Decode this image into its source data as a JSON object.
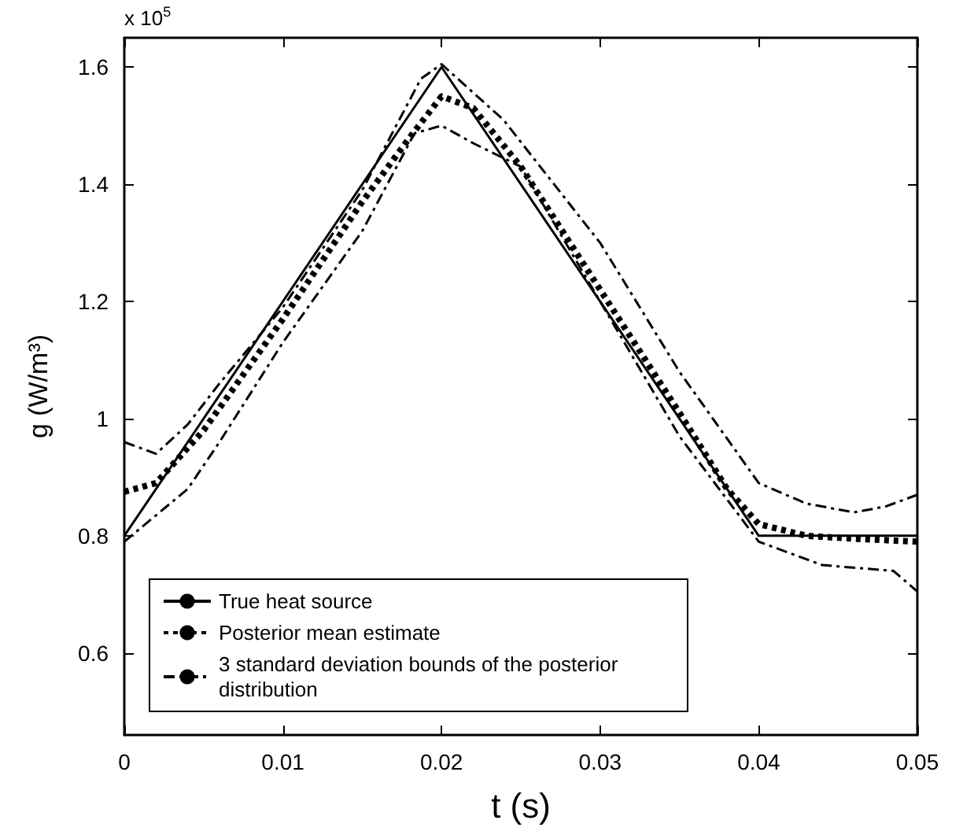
{
  "chart_data": {
    "type": "line",
    "xlabel": "t (s)",
    "ylabel": "g (W/m³)",
    "annotations": [
      "x 10$^{5}$"
    ],
    "xlim": [
      0,
      0.05
    ],
    "xticks": [
      0,
      0.01,
      0.02,
      0.03,
      0.04,
      0.05
    ],
    "ylim": [
      0.46,
      1.65
    ],
    "yticks": [
      0.6,
      0.8,
      1,
      1.2,
      1.4,
      1.6
    ],
    "grid": false,
    "legend": "bottom left",
    "marker": "none",
    "series": [
      {
        "name": "True heat source",
        "color": "#000000",
        "line_style": "solid",
        "x": [
          0,
          0.02,
          0.04,
          0.05
        ],
        "values": [
          0.8,
          1.6,
          0.8,
          0.8
        ]
      },
      {
        "name": "Posterior mean estimate",
        "color": "#000000",
        "line_style": "dotted",
        "x": [
          0,
          0.002,
          0.005,
          0.01,
          0.015,
          0.018,
          0.02,
          0.022,
          0.025,
          0.03,
          0.035,
          0.038,
          0.04,
          0.043,
          0.046,
          0.05
        ],
        "values": [
          0.875,
          0.89,
          0.98,
          1.17,
          1.37,
          1.48,
          1.55,
          1.53,
          1.43,
          1.22,
          1.01,
          0.88,
          0.82,
          0.8,
          0.795,
          0.79
        ]
      },
      {
        "name": "3 standard deviation bounds of the posterior distribution",
        "color": "#000000",
        "line_style": "dashdot",
        "x": [
          0,
          0.002,
          0.004,
          0.006,
          0.01,
          0.015,
          0.0187,
          0.02,
          0.0239,
          0.03,
          0.035,
          0.04,
          0.043,
          0.046,
          0.048,
          0.05
        ],
        "values": [
          0.96,
          0.94,
          0.99,
          1.06,
          1.19,
          1.39,
          1.58,
          1.605,
          1.51,
          1.3,
          1.08,
          0.89,
          0.855,
          0.84,
          0.85,
          0.87
        ]
      },
      {
        "color": "#000000",
        "line_style": "dashdot",
        "x": [
          0,
          0.004,
          0.006,
          0.01,
          0.015,
          0.0183,
          0.02,
          0.022,
          0.025,
          0.03,
          0.035,
          0.04,
          0.044,
          0.0485,
          0.05
        ],
        "values": [
          0.79,
          0.88,
          0.96,
          1.13,
          1.32,
          1.487,
          1.5,
          1.47,
          1.43,
          1.2,
          0.97,
          0.79,
          0.75,
          0.74,
          0.705
        ]
      }
    ]
  }
}
